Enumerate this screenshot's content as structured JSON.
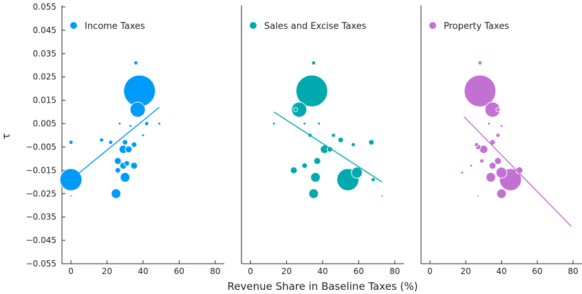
{
  "chart_data": {
    "type": "scatter",
    "xlabel": "Revenue Share in Baseline Taxes (%)",
    "ylabel": "τ",
    "xlim": [
      -5,
      85
    ],
    "ylim": [
      -0.055,
      0.055
    ],
    "x_ticks": [
      "0",
      "20",
      "40",
      "60",
      "80"
    ],
    "y_ticks": [
      "0.055",
      "0.045",
      "0.035",
      "0.025",
      "0.015",
      "0.005",
      "−0.005",
      "−0.015",
      "−0.025",
      "−0.035",
      "−0.045",
      "−0.055"
    ],
    "grid": false,
    "legend_position": "top-left",
    "panels": [
      {
        "name": "Income Taxes",
        "color": "#009AFA",
        "points": [
          {
            "x": 38,
            "y": 0.019,
            "s": 23
          },
          {
            "x": 37,
            "y": 0.011,
            "s": 11
          },
          {
            "x": 36,
            "y": 0.031,
            "s": 3
          },
          {
            "x": 0,
            "y": -0.019,
            "s": 16
          },
          {
            "x": 25,
            "y": -0.025,
            "s": 7
          },
          {
            "x": 30,
            "y": -0.018,
            "s": 7
          },
          {
            "x": 35,
            "y": -0.013,
            "s": 5
          },
          {
            "x": 29,
            "y": -0.013,
            "s": 5
          },
          {
            "x": 26,
            "y": -0.011,
            "s": 5
          },
          {
            "x": 31,
            "y": -0.012,
            "s": 4
          },
          {
            "x": 26,
            "y": -0.015,
            "s": 4
          },
          {
            "x": 29,
            "y": -0.006,
            "s": 6
          },
          {
            "x": 32,
            "y": -0.006,
            "s": 5
          },
          {
            "x": 30,
            "y": -0.003,
            "s": 4
          },
          {
            "x": 35,
            "y": -0.004,
            "s": 4
          },
          {
            "x": 17,
            "y": -0.002,
            "s": 3
          },
          {
            "x": 22,
            "y": -0.003,
            "s": 3
          },
          {
            "x": 27,
            "y": 0.005,
            "s": 2
          },
          {
            "x": 33,
            "y": 0.004,
            "s": 2
          },
          {
            "x": 42,
            "y": 0.005,
            "s": 3
          },
          {
            "x": 49,
            "y": 0.005,
            "s": 2
          },
          {
            "x": 40,
            "y": 0.0,
            "s": 2
          },
          {
            "x": 0,
            "y": -0.003,
            "s": 3
          },
          {
            "x": 0,
            "y": -0.026,
            "s": 1.5
          }
        ],
        "fit": {
          "x": [
            0,
            49
          ],
          "y": [
            -0.019,
            0.012
          ]
        }
      },
      {
        "name": "Sales and Excise Taxes",
        "color": "#00A9AD",
        "points": [
          {
            "x": 34,
            "y": 0.019,
            "s": 23
          },
          {
            "x": 27,
            "y": 0.011,
            "s": 11
          },
          {
            "x": 35,
            "y": 0.031,
            "s": 3
          },
          {
            "x": 54,
            "y": -0.019,
            "s": 16
          },
          {
            "x": 35,
            "y": -0.025,
            "s": 7
          },
          {
            "x": 36,
            "y": -0.018,
            "s": 7
          },
          {
            "x": 59,
            "y": -0.016,
            "s": 8
          },
          {
            "x": 24,
            "y": -0.015,
            "s": 5
          },
          {
            "x": 37,
            "y": -0.011,
            "s": 5
          },
          {
            "x": 30,
            "y": -0.013,
            "s": 4
          },
          {
            "x": 41,
            "y": -0.006,
            "s": 6
          },
          {
            "x": 44,
            "y": -0.006,
            "s": 4
          },
          {
            "x": 50,
            "y": -0.002,
            "s": 4
          },
          {
            "x": 57,
            "y": -0.004,
            "s": 3
          },
          {
            "x": 67,
            "y": -0.003,
            "s": 4
          },
          {
            "x": 33,
            "y": 0.0,
            "s": 3
          },
          {
            "x": 30,
            "y": 0.005,
            "s": 2
          },
          {
            "x": 38,
            "y": 0.005,
            "s": 2
          },
          {
            "x": 46,
            "y": 0.0,
            "s": 3
          },
          {
            "x": 68,
            "y": -0.019,
            "s": 3
          },
          {
            "x": 13,
            "y": 0.005,
            "s": 2
          },
          {
            "x": 25,
            "y": 0.011,
            "s": 3
          },
          {
            "x": 73,
            "y": -0.026,
            "s": 1.5
          }
        ],
        "fit": {
          "x": [
            13,
            73
          ],
          "y": [
            0.01,
            -0.02
          ]
        }
      },
      {
        "name": "Property Taxes",
        "color": "#C271D2",
        "points": [
          {
            "x": 28,
            "y": 0.019,
            "s": 23
          },
          {
            "x": 35,
            "y": 0.011,
            "s": 11
          },
          {
            "x": 28,
            "y": 0.031,
            "s": 3
          },
          {
            "x": 45,
            "y": -0.019,
            "s": 16
          },
          {
            "x": 40,
            "y": -0.025,
            "s": 7
          },
          {
            "x": 34,
            "y": -0.018,
            "s": 7
          },
          {
            "x": 40,
            "y": -0.016,
            "s": 8
          },
          {
            "x": 38,
            "y": -0.011,
            "s": 5
          },
          {
            "x": 35,
            "y": -0.013,
            "s": 5
          },
          {
            "x": 50,
            "y": -0.015,
            "s": 5
          },
          {
            "x": 30,
            "y": -0.006,
            "s": 6
          },
          {
            "x": 27,
            "y": -0.005,
            "s": 4
          },
          {
            "x": 35,
            "y": -0.003,
            "s": 4
          },
          {
            "x": 29,
            "y": -0.011,
            "s": 3
          },
          {
            "x": 26,
            "y": -0.004,
            "s": 3
          },
          {
            "x": 38,
            "y": 0.0,
            "s": 3
          },
          {
            "x": 40,
            "y": 0.004,
            "s": 2
          },
          {
            "x": 33,
            "y": 0.005,
            "s": 2
          },
          {
            "x": 38,
            "y": 0.011,
            "s": 3
          },
          {
            "x": 23,
            "y": -0.013,
            "s": 2
          },
          {
            "x": 18,
            "y": -0.016,
            "s": 2
          },
          {
            "x": 27,
            "y": -0.026,
            "s": 1.5
          }
        ],
        "fit": {
          "x": [
            19,
            79
          ],
          "y": [
            0.008,
            -0.039
          ]
        }
      }
    ]
  }
}
